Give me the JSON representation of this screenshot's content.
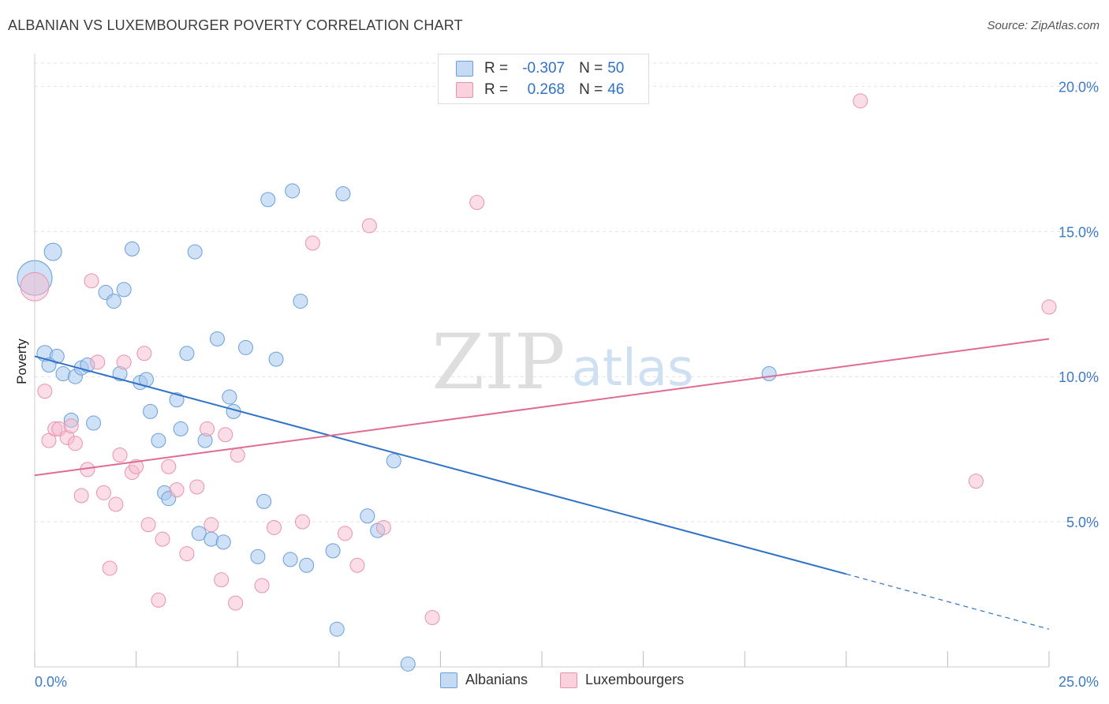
{
  "title": "ALBANIAN VS LUXEMBOURGER POVERTY CORRELATION CHART",
  "source": "Source: ZipAtlas.com",
  "watermark": {
    "zip": "ZIP",
    "atlas": "atlas"
  },
  "legend": {
    "rows": [
      {
        "r_label": "R =",
        "r_value": "-0.307",
        "n_label": "N =",
        "n_value": "50"
      },
      {
        "r_label": "R =",
        "r_value": "0.268",
        "n_label": "N =",
        "n_value": "46"
      }
    ]
  },
  "bottom_legend": {
    "albanians": "Albanians",
    "luxembourgers": "Luxembourgers"
  },
  "colors": {
    "albanian_fill": "#a8c8ee",
    "albanian_stroke": "#6a9fd8",
    "albanian_line": "#2f72c7",
    "luxembourger_fill": "#f6bccd",
    "luxembourger_stroke": "#e893ae",
    "luxembourger_line": "#e06b93",
    "tick_text": "#3e7ac6",
    "grid": "#e3e3e3"
  },
  "chart_data": {
    "type": "scatter",
    "title": "ALBANIAN VS LUXEMBOURGER POVERTY CORRELATION CHART",
    "xlabel": "",
    "ylabel": "Poverty",
    "xlim": [
      0,
      25
    ],
    "ylim": [
      0,
      20.8
    ],
    "x_tick_labels": [
      "0.0%",
      "25.0%"
    ],
    "y_ticks": [
      5,
      10,
      15,
      20
    ],
    "y_tick_labels": [
      "5.0%",
      "10.0%",
      "15.0%",
      "20.0%"
    ],
    "grid": true,
    "legend_position": "top-center",
    "series": [
      {
        "name": "Albanians",
        "r": -0.307,
        "n": 50,
        "trend": {
          "x0": 0,
          "y0": 10.7,
          "x1": 20,
          "y1": 3.2,
          "dashed_to_x": 25,
          "dashed_to_y": 1.3
        },
        "points": [
          [
            0.0,
            13.4,
            22
          ],
          [
            0.45,
            14.3,
            11
          ],
          [
            0.25,
            10.8,
            10
          ],
          [
            0.55,
            10.7,
            9
          ],
          [
            0.7,
            10.1,
            9
          ],
          [
            1.0,
            10.0,
            9
          ],
          [
            1.15,
            10.3,
            9
          ],
          [
            1.3,
            10.4,
            9
          ],
          [
            0.9,
            8.5,
            9
          ],
          [
            1.45,
            8.4,
            9
          ],
          [
            1.75,
            12.9,
            9
          ],
          [
            1.95,
            12.6,
            9
          ],
          [
            2.2,
            13.0,
            9
          ],
          [
            2.4,
            14.4,
            9
          ],
          [
            2.1,
            10.1,
            9
          ],
          [
            2.6,
            9.8,
            9
          ],
          [
            2.75,
            9.9,
            9
          ],
          [
            2.85,
            8.8,
            9
          ],
          [
            3.05,
            7.8,
            9
          ],
          [
            3.2,
            6.0,
            9
          ],
          [
            3.3,
            5.8,
            9
          ],
          [
            3.5,
            9.2,
            9
          ],
          [
            3.6,
            8.2,
            9
          ],
          [
            3.75,
            10.8,
            9
          ],
          [
            3.95,
            14.3,
            9
          ],
          [
            4.05,
            4.6,
            9
          ],
          [
            4.2,
            7.8,
            9
          ],
          [
            4.35,
            4.4,
            9
          ],
          [
            4.5,
            11.3,
            9
          ],
          [
            4.65,
            4.3,
            9
          ],
          [
            4.8,
            9.3,
            9
          ],
          [
            4.9,
            8.8,
            9
          ],
          [
            5.2,
            11.0,
            9
          ],
          [
            5.5,
            3.8,
            9
          ],
          [
            5.65,
            5.7,
            9
          ],
          [
            5.75,
            16.1,
            9
          ],
          [
            5.95,
            10.6,
            9
          ],
          [
            6.3,
            3.7,
            9
          ],
          [
            6.35,
            16.4,
            9
          ],
          [
            6.55,
            12.6,
            9
          ],
          [
            6.7,
            3.5,
            9
          ],
          [
            7.35,
            4.0,
            9
          ],
          [
            7.45,
            1.3,
            9
          ],
          [
            7.6,
            16.3,
            9
          ],
          [
            8.2,
            5.2,
            9
          ],
          [
            8.45,
            4.7,
            9
          ],
          [
            8.85,
            7.1,
            9
          ],
          [
            9.2,
            0.1,
            9
          ],
          [
            18.1,
            10.1,
            9
          ],
          [
            0.35,
            10.4,
            9
          ]
        ]
      },
      {
        "name": "Luxembourgers",
        "r": 0.268,
        "n": 46,
        "trend": {
          "x0": 0,
          "y0": 6.6,
          "x1": 25,
          "y1": 11.3
        },
        "points": [
          [
            0.0,
            13.1,
            18
          ],
          [
            0.25,
            9.5,
            9
          ],
          [
            0.35,
            7.8,
            9
          ],
          [
            0.5,
            8.2,
            9
          ],
          [
            0.6,
            8.2,
            9
          ],
          [
            0.8,
            7.9,
            9
          ],
          [
            0.9,
            8.3,
            9
          ],
          [
            1.0,
            7.7,
            9
          ],
          [
            1.15,
            5.9,
            9
          ],
          [
            1.3,
            6.8,
            9
          ],
          [
            1.4,
            13.3,
            9
          ],
          [
            1.55,
            10.5,
            9
          ],
          [
            1.7,
            6.0,
            9
          ],
          [
            1.85,
            3.4,
            9
          ],
          [
            2.0,
            5.6,
            9
          ],
          [
            2.1,
            7.3,
            9
          ],
          [
            2.2,
            10.5,
            9
          ],
          [
            2.4,
            6.7,
            9
          ],
          [
            2.5,
            6.9,
            9
          ],
          [
            2.7,
            10.8,
            9
          ],
          [
            2.8,
            4.9,
            9
          ],
          [
            3.05,
            2.3,
            9
          ],
          [
            3.15,
            4.4,
            9
          ],
          [
            3.3,
            6.9,
            9
          ],
          [
            3.5,
            6.1,
            9
          ],
          [
            3.75,
            3.9,
            9
          ],
          [
            4.0,
            6.2,
            9
          ],
          [
            4.25,
            8.2,
            9
          ],
          [
            4.35,
            4.9,
            9
          ],
          [
            4.6,
            3.0,
            9
          ],
          [
            4.7,
            8.0,
            9
          ],
          [
            4.95,
            2.2,
            9
          ],
          [
            5.0,
            7.3,
            9
          ],
          [
            5.6,
            2.8,
            9
          ],
          [
            5.9,
            4.8,
            9
          ],
          [
            6.6,
            5.0,
            9
          ],
          [
            6.85,
            14.6,
            9
          ],
          [
            7.65,
            4.6,
            9
          ],
          [
            7.95,
            3.5,
            9
          ],
          [
            8.25,
            15.2,
            9
          ],
          [
            8.6,
            4.8,
            9
          ],
          [
            9.8,
            1.7,
            9
          ],
          [
            10.9,
            16.0,
            9
          ],
          [
            20.35,
            19.5,
            9
          ],
          [
            23.2,
            6.4,
            9
          ],
          [
            25.0,
            12.4,
            9
          ]
        ]
      }
    ]
  }
}
